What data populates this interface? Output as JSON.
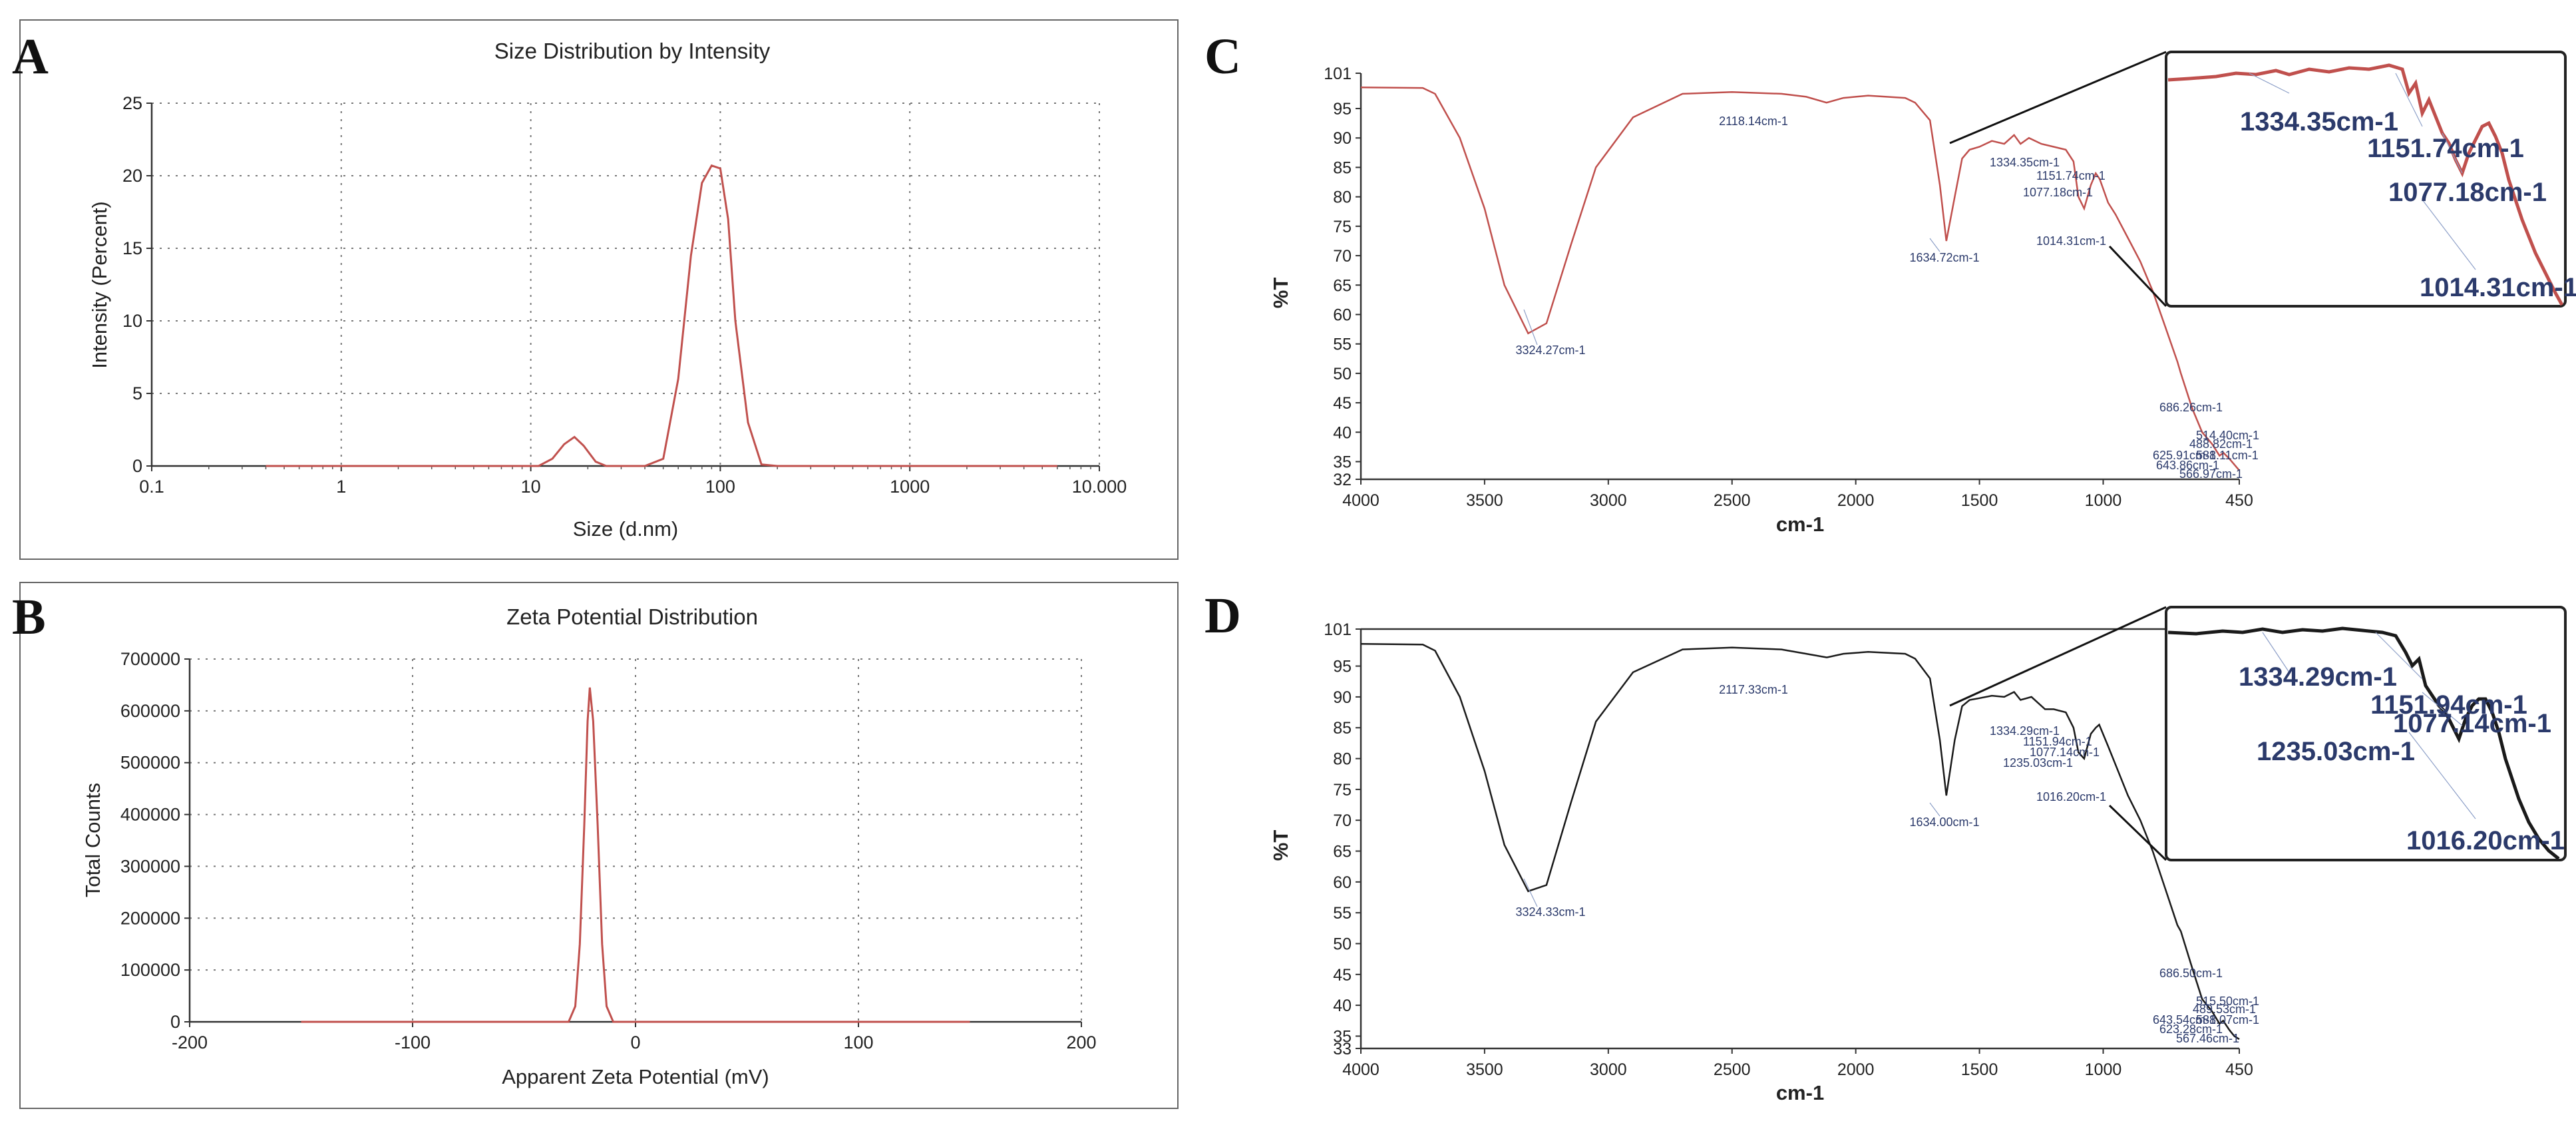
{
  "colors": {
    "red_series": "#c0504d",
    "dark_series": "#1a1a1a",
    "annotation": "#2b3a6b"
  },
  "chart_data": [
    {
      "panel": "A",
      "type": "line",
      "title": "Size Distribution by Intensity",
      "xlabel": "Size (d.nm)",
      "ylabel": "Intensity (Percent)",
      "xscale": "log",
      "xlim": [
        0.1,
        10000
      ],
      "ylim": [
        0,
        25
      ],
      "x_ticks": [
        0.1,
        1,
        10,
        100,
        1000,
        10000
      ],
      "x_tick_labels": [
        "0.1",
        "1",
        "10",
        "100",
        "1000",
        "10.000"
      ],
      "y_ticks": [
        0,
        5,
        10,
        15,
        20,
        25
      ],
      "y_tick_labels": [
        "0",
        "5",
        "10",
        "15",
        "20",
        "25"
      ],
      "grid": true,
      "series": [
        {
          "name": "Intensity",
          "color": "#c0504d",
          "x": [
            0.4,
            11,
            13,
            15,
            17,
            19,
            22,
            25,
            40,
            50,
            60,
            70,
            80,
            90,
            100,
            110,
            120,
            140,
            165,
            200,
            6000
          ],
          "values": [
            0,
            0,
            0.5,
            1.5,
            2.0,
            1.4,
            0.3,
            0,
            0,
            0.5,
            6.0,
            14.5,
            19.5,
            20.7,
            20.5,
            17.0,
            10.0,
            3.0,
            0.1,
            0,
            0
          ]
        }
      ]
    },
    {
      "panel": "B",
      "type": "line",
      "title": "Zeta Potential Distribution",
      "xlabel": "Apparent Zeta Potential (mV)",
      "ylabel": "Total Counts",
      "xlim": [
        -200,
        200
      ],
      "ylim": [
        0,
        700000
      ],
      "x_ticks": [
        -200,
        -100,
        0,
        100,
        200
      ],
      "x_tick_labels": [
        "-200",
        "-100",
        "0",
        "100",
        "200"
      ],
      "y_ticks": [
        0,
        100000,
        200000,
        300000,
        400000,
        500000,
        600000,
        700000
      ],
      "y_tick_labels": [
        "0",
        "100000",
        "200000",
        "300000",
        "400000",
        "500000",
        "600000",
        "700000"
      ],
      "grid": true,
      "series": [
        {
          "name": "Counts",
          "color": "#c0504d",
          "x": [
            -150,
            -30,
            -27,
            -25,
            -23,
            -21.5,
            -20.5,
            -19,
            -17,
            -15,
            -13,
            -10,
            150
          ],
          "values": [
            0,
            0,
            30000,
            150000,
            380000,
            580000,
            645000,
            580000,
            380000,
            150000,
            30000,
            0,
            0
          ]
        }
      ]
    },
    {
      "panel": "C",
      "type": "line",
      "xlabel": "cm-1",
      "ylabel": "%T",
      "xlim": [
        4000,
        450
      ],
      "ylim": [
        32,
        101
      ],
      "x_ticks": [
        4000,
        3500,
        3000,
        2500,
        2000,
        1500,
        1000,
        450
      ],
      "x_tick_labels": [
        "4000",
        "3500",
        "3000",
        "2500",
        "2000",
        "1500",
        "1000",
        "450"
      ],
      "y_ticks": [
        32,
        35,
        40,
        45,
        50,
        55,
        60,
        65,
        70,
        75,
        80,
        85,
        90,
        95,
        101
      ],
      "y_tick_labels": [
        "32",
        "35",
        "40",
        "45",
        "50",
        "55",
        "60",
        "65",
        "70",
        "75",
        "80",
        "85",
        "90",
        "95",
        "101"
      ],
      "series": [
        {
          "name": "FTIR C",
          "color": "#c0504d",
          "x": [
            4000,
            3750,
            3700,
            3600,
            3500,
            3420,
            3324,
            3250,
            3150,
            3050,
            2900,
            2700,
            2500,
            2300,
            2200,
            2118,
            2050,
            1950,
            1800,
            1760,
            1700,
            1660,
            1634,
            1600,
            1570,
            1540,
            1500,
            1450,
            1400,
            1360,
            1334,
            1300,
            1250,
            1200,
            1151,
            1120,
            1100,
            1077,
            1050,
            1030,
            1014,
            980,
            950,
            900,
            850,
            800,
            750,
            700,
            686,
            640,
            600,
            560,
            530,
            514,
            490,
            470,
            450
          ],
          "values": [
            98.6,
            98.5,
            97.5,
            90,
            78,
            65,
            56.8,
            58.5,
            72,
            85,
            93.5,
            97.5,
            97.8,
            97.5,
            97,
            96,
            96.8,
            97.2,
            96.8,
            96,
            93,
            82,
            72.5,
            80,
            86.5,
            88,
            88.5,
            89.5,
            89,
            90.5,
            89,
            90,
            89,
            88.5,
            88,
            86,
            80,
            78,
            82,
            84,
            83,
            79,
            77,
            73,
            69,
            64,
            58,
            52,
            50,
            44,
            40,
            38,
            36,
            36.5,
            35.5,
            34.5,
            33.5
          ]
        }
      ],
      "annotations": [
        "3324.27cm-1",
        "2118.14cm-1",
        "1634.72cm-1",
        "1334.35cm-1",
        "1151.74cm-1",
        "1077.18cm-1",
        "1014.31cm-1",
        "686.26cm-1",
        "514.40cm-1",
        "488.82cm-1",
        "625.91cm-1",
        "588.11cm-1",
        "643.86cm-1",
        "566.97cm-1"
      ],
      "inset_annotations": [
        "1334.35cm-1",
        "1151.74cm-1",
        "1077.18cm-1",
        "1014.31cm-1"
      ]
    },
    {
      "panel": "D",
      "type": "line",
      "xlabel": "cm-1",
      "ylabel": "%T",
      "xlim": [
        4000,
        450
      ],
      "ylim": [
        33,
        101
      ],
      "x_ticks": [
        4000,
        3500,
        3000,
        2500,
        2000,
        1500,
        1000,
        450
      ],
      "x_tick_labels": [
        "4000",
        "3500",
        "3000",
        "2500",
        "2000",
        "1500",
        "1000",
        "450"
      ],
      "y_ticks": [
        33,
        35,
        40,
        45,
        50,
        55,
        60,
        65,
        70,
        75,
        80,
        85,
        90,
        95,
        101
      ],
      "y_tick_labels": [
        "33",
        "35",
        "40",
        "45",
        "50",
        "55",
        "60",
        "65",
        "70",
        "75",
        "80",
        "85",
        "90",
        "95",
        "101"
      ],
      "series": [
        {
          "name": "FTIR D",
          "color": "#1a1a1a",
          "x": [
            4000,
            3750,
            3700,
            3600,
            3500,
            3420,
            3324,
            3250,
            3150,
            3050,
            2900,
            2700,
            2500,
            2300,
            2200,
            2117,
            2050,
            1950,
            1800,
            1760,
            1700,
            1660,
            1634,
            1600,
            1570,
            1540,
            1500,
            1450,
            1400,
            1360,
            1334,
            1290,
            1235,
            1200,
            1151,
            1120,
            1100,
            1077,
            1050,
            1030,
            1016,
            980,
            950,
            900,
            850,
            800,
            750,
            700,
            686,
            640,
            600,
            560,
            530,
            515,
            490,
            470,
            450
          ],
          "values": [
            98.6,
            98.5,
            97.5,
            90,
            78,
            66,
            58.5,
            59.5,
            73,
            86,
            94,
            97.7,
            98,
            97.7,
            97,
            96.4,
            97,
            97.3,
            97,
            96.2,
            93,
            83,
            74,
            83,
            88.5,
            89.5,
            89.8,
            90.2,
            90,
            90.8,
            89.5,
            90,
            88,
            88,
            87.5,
            85,
            81,
            80,
            84,
            85,
            85.5,
            82,
            79,
            74,
            70,
            65,
            59,
            53,
            52,
            46,
            41,
            39,
            37,
            37.5,
            36,
            35,
            34.5
          ]
        }
      ],
      "annotations": [
        "3324.33cm-1",
        "2117.33cm-1",
        "1634.00cm-1",
        "1334.29cm-1",
        "1151.94cm-1",
        "1077.14cm-1",
        "1235.03cm-1",
        "1016.20cm-1",
        "686.50cm-1",
        "515.50cm-1",
        "489.53cm-1",
        "643.54cm-1",
        "588.07cm-1",
        "623.28cm-1",
        "567.46cm-1"
      ],
      "inset_annotations": [
        "1334.29cm-1",
        "1151.94cm-1",
        "1077.14cm-1",
        "1235.03cm-1",
        "1016.20cm-1"
      ]
    }
  ]
}
